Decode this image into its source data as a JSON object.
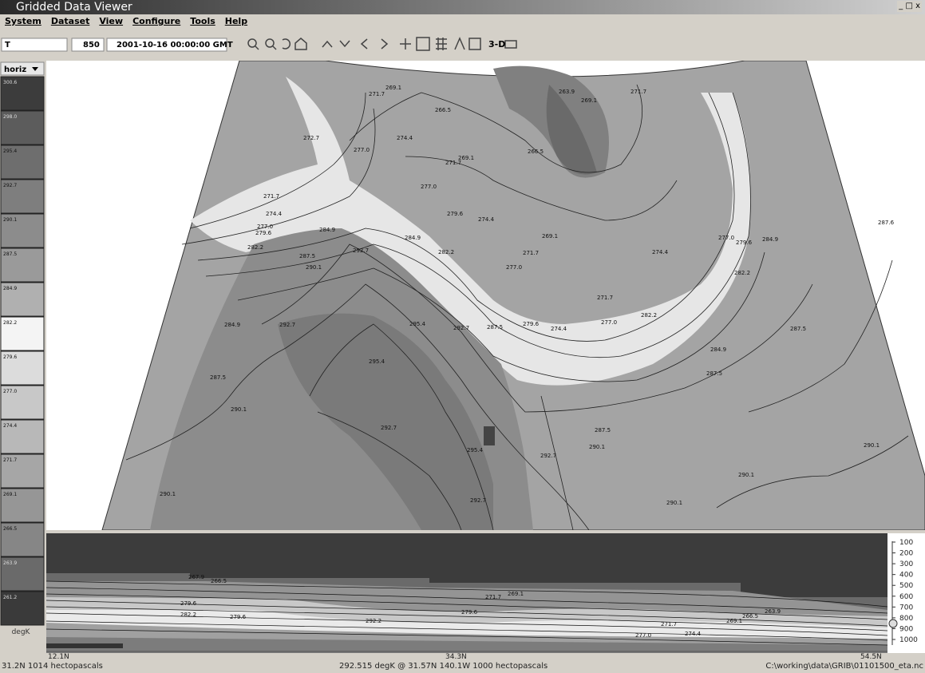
{
  "window": {
    "title": "Gridded Data Viewer",
    "controls": [
      "_",
      "□",
      "x"
    ]
  },
  "menu": [
    "System",
    "Dataset",
    "View",
    "Configure",
    "Tools",
    "Help"
  ],
  "toolbar": {
    "parameter": "T",
    "level": "850",
    "time": "2001-10-16 00:00:00 GMT",
    "three_d": "3-D"
  },
  "legend": {
    "mode": "horiz",
    "unit": "degK",
    "entries": [
      {
        "label": "300.6",
        "color": "#3c3c3c"
      },
      {
        "label": "298.0",
        "color": "#5c5c5c"
      },
      {
        "label": "295.4",
        "color": "#6e6e6e"
      },
      {
        "label": "292.7",
        "color": "#7e7e7e"
      },
      {
        "label": "290.1",
        "color": "#8c8c8c"
      },
      {
        "label": "287.5",
        "color": "#9a9a9a"
      },
      {
        "label": "284.9",
        "color": "#b0b0b0"
      },
      {
        "label": "282.2",
        "color": "#f4f4f4"
      },
      {
        "label": "279.6",
        "color": "#dcdcdc"
      },
      {
        "label": "277.0",
        "color": "#c8c8c8"
      },
      {
        "label": "274.4",
        "color": "#b8b8b8"
      },
      {
        "label": "271.7",
        "color": "#a6a6a6"
      },
      {
        "label": "269.1",
        "color": "#969696"
      },
      {
        "label": "266.5",
        "color": "#868686"
      },
      {
        "label": "263.9",
        "color": "#6a6a6a"
      },
      {
        "label": "261.2",
        "color": "#3a3a3a"
      }
    ]
  },
  "map": {
    "contour_labels": [
      "269.1",
      "271.7",
      "266.5",
      "263.9",
      "269.1",
      "271.7",
      "272.7",
      "274.4",
      "277.0",
      "269.1",
      "266.5",
      "271.7",
      "277.0",
      "271.7",
      "274.4",
      "277.0",
      "279.6",
      "284.9",
      "282.2",
      "279.6",
      "274.4",
      "284.9",
      "282.2",
      "277.0",
      "271.7",
      "269.1",
      "287.5",
      "292.7",
      "290.1",
      "284.9",
      "292.7",
      "295.4",
      "292.7",
      "287.5",
      "279.6",
      "274.4",
      "277.0",
      "282.2",
      "287.5",
      "284.9",
      "287.5",
      "295.4",
      "287.5",
      "290.1",
      "292.7",
      "295.4",
      "292.7",
      "287.5",
      "290.1",
      "290.1",
      "292.7",
      "290.1",
      "290.1",
      "290.1",
      "287.6",
      "284.9",
      "279.6",
      "277.0",
      "274.4",
      "282.2",
      "271.7"
    ]
  },
  "cross_section": {
    "contour_labels": [
      "267.9",
      "266.5",
      "271.7",
      "269.1",
      "279.6",
      "292.2",
      "279.6",
      "282.2",
      "269.1",
      "266.5",
      "263.9",
      "271.7",
      "277.0",
      "274.4",
      "279.6"
    ],
    "pressure_ticks": [
      "100",
      "200",
      "300",
      "400",
      "500",
      "600",
      "700",
      "800",
      "900",
      "1000"
    ],
    "latitude_ticks": [
      "12.1N",
      "34.3N",
      "54.5N"
    ]
  },
  "status": {
    "position": "31.2N 1014 hectopascals",
    "readout": "292.515 degK @ 31.57N 140.1W 1000 hectopascals",
    "file": "C:\\working\\data\\GRIB\\01101500_eta.nc"
  }
}
